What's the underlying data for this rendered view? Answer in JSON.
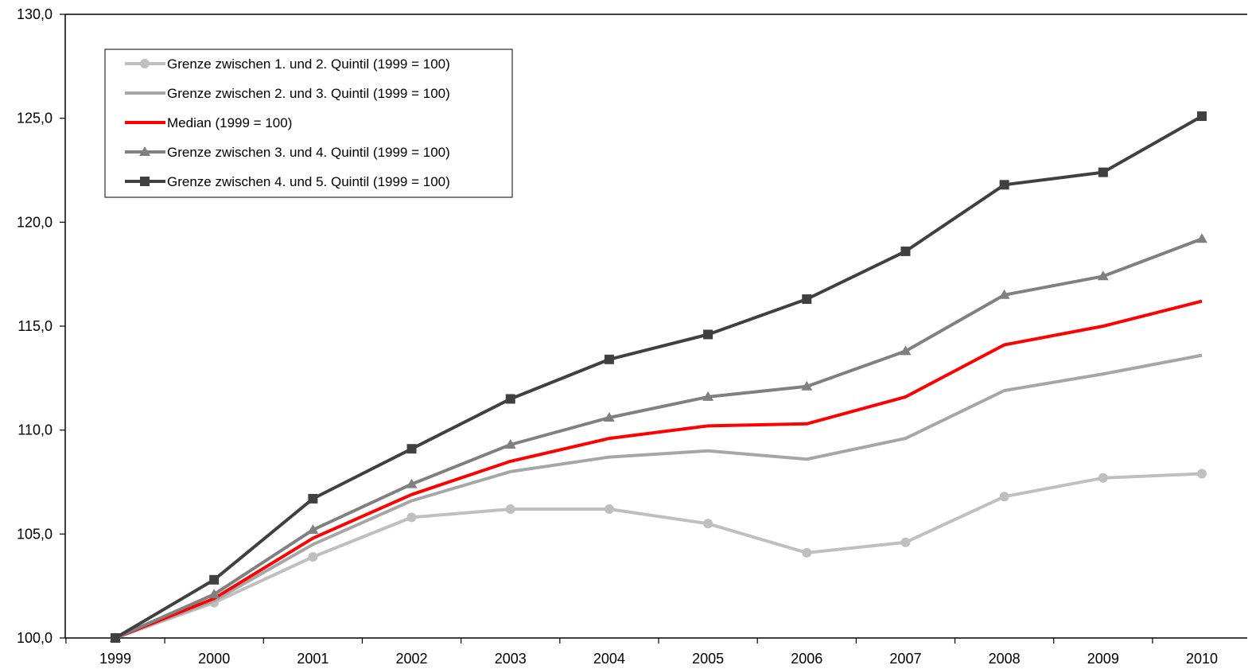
{
  "chart_data": {
    "type": "line",
    "title": "",
    "xlabel": "",
    "ylabel": "",
    "x": [
      "1999",
      "2000",
      "2001",
      "2002",
      "2003",
      "2004",
      "2005",
      "2006",
      "2007",
      "2008",
      "2009",
      "2010"
    ],
    "ylim": [
      100,
      130
    ],
    "yticks": [
      "100,0",
      "105,0",
      "110,0",
      "115,0",
      "120,0",
      "125,0",
      "130,0"
    ],
    "ytick_values": [
      100,
      105,
      110,
      115,
      120,
      125,
      130
    ],
    "grid": false,
    "legend_position": "top-left",
    "series": [
      {
        "name": "Grenze zwischen 1. und 2. Quintil (1999 = 100)",
        "color": "#bfbfbf",
        "marker": "circle",
        "values": [
          100.0,
          101.7,
          103.9,
          105.8,
          106.2,
          106.2,
          105.5,
          104.1,
          104.6,
          106.8,
          107.7,
          107.9
        ]
      },
      {
        "name": "Grenze zwischen 2. und 3. Quintil (1999 = 100)",
        "color": "#a6a6a6",
        "marker": "none",
        "values": [
          100.0,
          101.8,
          104.5,
          106.6,
          108.0,
          108.7,
          109.0,
          108.6,
          109.6,
          111.9,
          112.7,
          113.6
        ]
      },
      {
        "name": "Median (1999 = 100)",
        "color": "#ff0000",
        "marker": "none",
        "values": [
          100.0,
          101.9,
          104.8,
          106.9,
          108.5,
          109.6,
          110.2,
          110.3,
          111.6,
          114.1,
          115.0,
          116.2
        ]
      },
      {
        "name": "Grenze zwischen 3. und 4. Quintil (1999 = 100)",
        "color": "#808080",
        "marker": "triangle",
        "values": [
          100.0,
          102.1,
          105.2,
          107.4,
          109.3,
          110.6,
          111.6,
          112.1,
          113.8,
          116.5,
          117.4,
          119.2
        ]
      },
      {
        "name": "Grenze zwischen 4. und 5. Quintil (1999 = 100)",
        "color": "#404040",
        "marker": "square",
        "values": [
          100.0,
          102.8,
          106.7,
          109.1,
          111.5,
          113.4,
          114.6,
          116.3,
          118.6,
          121.8,
          122.4,
          125.1
        ]
      }
    ]
  }
}
